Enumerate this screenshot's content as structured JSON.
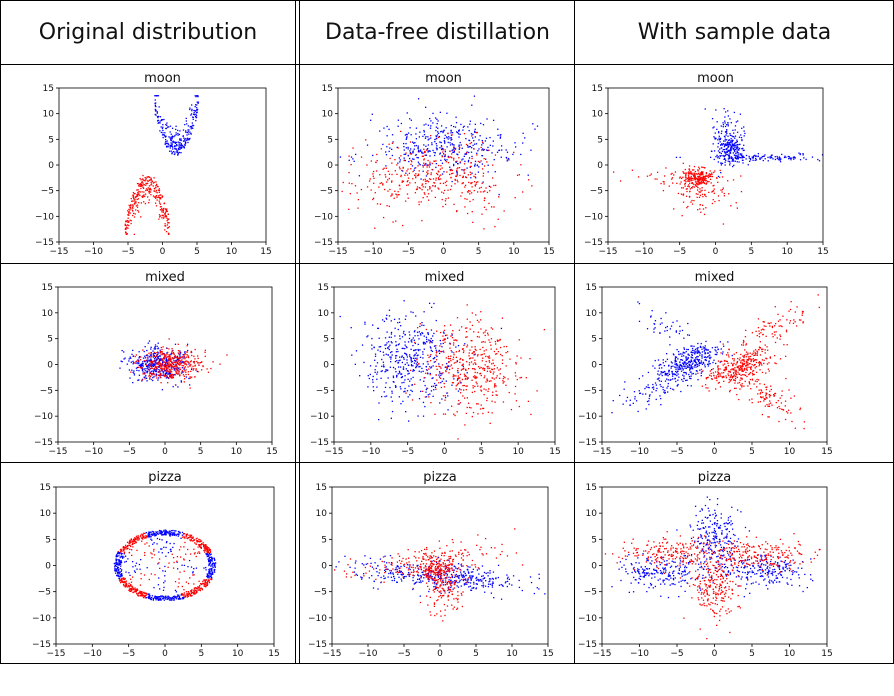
{
  "columns": [
    {
      "label": "Original distribution"
    },
    {
      "label": "Data-free distillation"
    },
    {
      "label": "With sample data"
    }
  ],
  "colors": {
    "class_a": "#0000ff",
    "class_b": "#ff0000"
  },
  "chart_data": [
    {
      "type": "scatter",
      "title": "moon",
      "column": "Original distribution",
      "xlim": [
        -15,
        15
      ],
      "ylim": [
        -15,
        15
      ],
      "xticks": [
        -15,
        -10,
        -5,
        0,
        5,
        10,
        15
      ],
      "yticks": [
        -15,
        -10,
        -5,
        0,
        5,
        10,
        15
      ],
      "gen": [
        {
          "color": "#0000ff",
          "n": 260,
          "kind": "parabola",
          "cx": 2,
          "cy": 1.5,
          "a": 0.85,
          "hw": 3.2,
          "w": 4.5,
          "up": true,
          "seed": 11
        },
        {
          "color": "#ff0000",
          "n": 300,
          "kind": "parabola",
          "cx": -2.2,
          "cy": -1.5,
          "a": 0.85,
          "hw": 3.2,
          "w": 4.5,
          "up": false,
          "seed": 12
        }
      ]
    },
    {
      "type": "scatter",
      "title": "moon",
      "column": "Data-free distillation",
      "xlim": [
        -15,
        15
      ],
      "ylim": [
        -15,
        15
      ],
      "xticks": [
        -15,
        -10,
        -5,
        0,
        5,
        10,
        15
      ],
      "yticks": [
        -15,
        -10,
        -5,
        0,
        5,
        10,
        15
      ],
      "gen": [
        {
          "color": "#0000ff",
          "n": 420,
          "kind": "gauss",
          "cx": 0.5,
          "cy": 3.5,
          "sx": 5.2,
          "sy": 3.0,
          "seed": 21
        },
        {
          "color": "#ff0000",
          "n": 420,
          "kind": "gauss",
          "cx": -1.5,
          "cy": -2.5,
          "sx": 5.5,
          "sy": 3.5,
          "seed": 22
        }
      ]
    },
    {
      "type": "scatter",
      "title": "moon",
      "column": "With sample data",
      "xlim": [
        -15,
        15
      ],
      "ylim": [
        -15,
        15
      ],
      "xticks": [
        -15,
        -10,
        -5,
        0,
        5,
        10,
        15
      ],
      "yticks": [
        -15,
        -10,
        -5,
        0,
        5,
        10,
        15
      ],
      "gen": [
        {
          "color": "#0000ff",
          "n": 230,
          "kind": "gauss",
          "cx": 2,
          "cy": 3,
          "sx": 1.2,
          "sy": 1.8,
          "seed": 31
        },
        {
          "color": "#0000ff",
          "n": 110,
          "kind": "gauss",
          "cx": 7,
          "cy": 1.5,
          "sx": 4.5,
          "sy": 0.35,
          "seed": 32
        },
        {
          "color": "#0000ff",
          "n": 60,
          "kind": "gauss",
          "cx": 1.5,
          "cy": 6,
          "sx": 1.0,
          "sy": 2.5,
          "seed": 33
        },
        {
          "color": "#ff0000",
          "n": 200,
          "kind": "gauss",
          "cx": -2.5,
          "cy": -2.5,
          "sx": 1.1,
          "sy": 0.9,
          "seed": 34
        },
        {
          "color": "#ff0000",
          "n": 120,
          "kind": "gauss",
          "cx": -2,
          "cy": -5,
          "sx": 2.5,
          "sy": 2.2,
          "seed": 35
        },
        {
          "color": "#ff0000",
          "n": 30,
          "kind": "gauss",
          "cx": -6,
          "cy": -2,
          "sx": 3.5,
          "sy": 0.8,
          "seed": 36
        }
      ]
    },
    {
      "type": "scatter",
      "title": "mixed",
      "column": "Original distribution",
      "xlim": [
        -15,
        15
      ],
      "ylim": [
        -15,
        15
      ],
      "xticks": [
        -15,
        -10,
        -5,
        0,
        5,
        10,
        15
      ],
      "yticks": [
        -15,
        -10,
        -5,
        0,
        5,
        10,
        15
      ],
      "gen": [
        {
          "color": "#0000ff",
          "n": 400,
          "kind": "gauss",
          "cx": -1,
          "cy": 0,
          "sx": 2.2,
          "sy": 1.7,
          "seed": 41
        },
        {
          "color": "#ff0000",
          "n": 400,
          "kind": "gauss",
          "cx": 1,
          "cy": 0,
          "sx": 2.2,
          "sy": 1.7,
          "seed": 42
        }
      ]
    },
    {
      "type": "scatter",
      "title": "mixed",
      "column": "Data-free distillation",
      "xlim": [
        -15,
        15
      ],
      "ylim": [
        -15,
        15
      ],
      "xticks": [
        -15,
        -10,
        -5,
        0,
        5,
        10,
        15
      ],
      "yticks": [
        -15,
        -10,
        -5,
        0,
        5,
        10,
        15
      ],
      "gen": [
        {
          "color": "#0000ff",
          "n": 450,
          "kind": "gauss",
          "cx": -4.5,
          "cy": 0.5,
          "sx": 3.2,
          "sy": 4.5,
          "seed": 51
        },
        {
          "color": "#ff0000",
          "n": 450,
          "kind": "gauss",
          "cx": 3.5,
          "cy": -0.5,
          "sx": 3.2,
          "sy": 4.5,
          "seed": 52
        }
      ]
    },
    {
      "type": "scatter",
      "title": "mixed",
      "column": "With sample data",
      "xlim": [
        -15,
        15
      ],
      "ylim": [
        -15,
        15
      ],
      "xticks": [
        -15,
        -10,
        -5,
        0,
        5,
        10,
        15
      ],
      "yticks": [
        -15,
        -10,
        -5,
        0,
        5,
        10,
        15
      ],
      "gen": [
        {
          "color": "#0000ff",
          "n": 320,
          "kind": "rotgauss",
          "cx": -3.5,
          "cy": 0.5,
          "sx": 2.5,
          "sy": 1.2,
          "deg": 35,
          "seed": 61
        },
        {
          "color": "#0000ff",
          "n": 110,
          "kind": "rotgauss",
          "cx": -7,
          "cy": -4,
          "sx": 3.5,
          "sy": 1.2,
          "deg": 40,
          "seed": 62
        },
        {
          "color": "#0000ff",
          "n": 40,
          "kind": "rotgauss",
          "cx": -7,
          "cy": 8,
          "sx": 2.5,
          "sy": 1.2,
          "deg": -50,
          "seed": 63
        },
        {
          "color": "#ff0000",
          "n": 320,
          "kind": "rotgauss",
          "cx": 3.5,
          "cy": -0.5,
          "sx": 2.5,
          "sy": 1.4,
          "deg": 35,
          "seed": 64
        },
        {
          "color": "#ff0000",
          "n": 120,
          "kind": "rotgauss",
          "cx": 7,
          "cy": -6,
          "sx": 3.5,
          "sy": 1.4,
          "deg": -45,
          "seed": 65
        },
        {
          "color": "#ff0000",
          "n": 80,
          "kind": "rotgauss",
          "cx": 8,
          "cy": 7,
          "sx": 3.0,
          "sy": 1.2,
          "deg": 40,
          "seed": 66
        }
      ]
    },
    {
      "type": "scatter",
      "title": "pizza",
      "column": "Original distribution",
      "xlim": [
        -15,
        15
      ],
      "ylim": [
        -15,
        15
      ],
      "xticks": [
        -15,
        -10,
        -5,
        0,
        5,
        10,
        15
      ],
      "yticks": [
        -15,
        -10,
        -5,
        0,
        5,
        10,
        15
      ],
      "gen": [
        {
          "kind": "pizza",
          "n": 1100,
          "r": 7.0,
          "ry": 7.0,
          "seed": 71,
          "ring": 0.8
        }
      ]
    },
    {
      "type": "scatter",
      "title": "pizza",
      "column": "Data-free distillation",
      "xlim": [
        -15,
        15
      ],
      "ylim": [
        -15,
        15
      ],
      "xticks": [
        -15,
        -10,
        -5,
        0,
        5,
        10,
        15
      ],
      "yticks": [
        -15,
        -10,
        -5,
        0,
        5,
        10,
        15
      ],
      "gen": [
        {
          "color": "#0000ff",
          "n": 420,
          "kind": "rotgauss",
          "cx": 0.5,
          "cy": -2,
          "sx": 6.0,
          "sy": 1.3,
          "deg": -8,
          "seed": 81
        },
        {
          "color": "#ff0000",
          "n": 170,
          "kind": "gauss",
          "cx": 0.5,
          "cy": -3.5,
          "sx": 1.3,
          "sy": 3.0,
          "seed": 82
        },
        {
          "color": "#ff0000",
          "n": 200,
          "kind": "rotgauss",
          "cx": -2,
          "cy": 0.5,
          "sx": 5.5,
          "sy": 1.5,
          "deg": 12,
          "seed": 83
        },
        {
          "color": "#ff0000",
          "n": 100,
          "kind": "gauss",
          "cx": -0.5,
          "cy": -1,
          "sx": 1.2,
          "sy": 0.8,
          "seed": 84
        }
      ]
    },
    {
      "type": "scatter",
      "title": "pizza",
      "column": "With sample data",
      "xlim": [
        -15,
        15
      ],
      "ylim": [
        -15,
        15
      ],
      "xticks": [
        -15,
        -10,
        -5,
        0,
        5,
        10,
        15
      ],
      "yticks": [
        -15,
        -10,
        -5,
        0,
        5,
        10,
        15
      ],
      "gen": [
        {
          "color": "#0000ff",
          "n": 230,
          "kind": "gauss",
          "cx": 0,
          "cy": 5,
          "sx": 1.6,
          "sy": 3.2,
          "seed": 91
        },
        {
          "color": "#0000ff",
          "n": 220,
          "kind": "gauss",
          "cx": -7,
          "cy": -1.5,
          "sx": 3.3,
          "sy": 1.5,
          "seed": 92
        },
        {
          "color": "#0000ff",
          "n": 220,
          "kind": "gauss",
          "cx": 7,
          "cy": -1,
          "sx": 3.3,
          "sy": 1.5,
          "seed": 93
        },
        {
          "color": "#ff0000",
          "n": 230,
          "kind": "gauss",
          "cx": 0,
          "cy": -4,
          "sx": 1.6,
          "sy": 3.2,
          "seed": 94
        },
        {
          "color": "#ff0000",
          "n": 200,
          "kind": "gauss",
          "cx": -6,
          "cy": 2.5,
          "sx": 3.3,
          "sy": 1.4,
          "seed": 95
        },
        {
          "color": "#ff0000",
          "n": 200,
          "kind": "gauss",
          "cx": 6,
          "cy": 2,
          "sx": 3.3,
          "sy": 1.4,
          "seed": 96
        }
      ]
    }
  ]
}
